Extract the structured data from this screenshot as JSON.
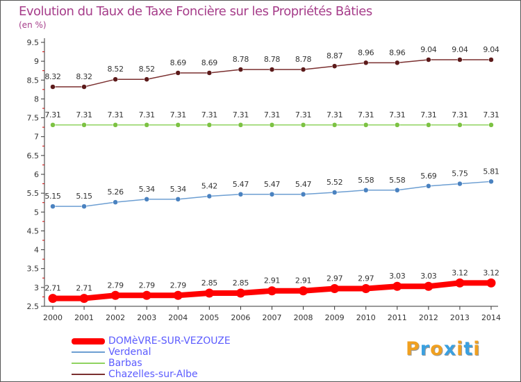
{
  "title": "Evolution du Taux de Taxe Foncière sur les Propriétés Bâties",
  "subtitle": "(en %)",
  "chart_data": {
    "type": "line",
    "title": "Evolution du Taux de Taxe Foncière sur les Propriétés Bâties",
    "ylabel": "(en %)",
    "xlabel": "",
    "ylim": [
      2.5,
      9.5
    ],
    "yticks": [
      "2.5",
      "3",
      "3.5",
      "4",
      "4.5",
      "5",
      "5.5",
      "6",
      "6.5",
      "7",
      "7.5",
      "8",
      "8.5",
      "9",
      "9.5"
    ],
    "categories": [
      "2000",
      "2001",
      "2002",
      "2003",
      "2004",
      "2005",
      "2006",
      "2007",
      "2008",
      "2009",
      "2010",
      "2011",
      "2012",
      "2013",
      "2014"
    ],
    "grid": false,
    "legend_position": "bottom-left",
    "series": [
      {
        "name": "DOMèVRE-SUR-VEZOUZE",
        "color": "#ff0000",
        "marker_color": "#ff0000",
        "highlight": true,
        "values": [
          2.71,
          2.71,
          2.79,
          2.79,
          2.79,
          2.85,
          2.85,
          2.91,
          2.91,
          2.97,
          2.97,
          3.03,
          3.03,
          3.12,
          3.12
        ],
        "labels": [
          "2.71",
          "2.71",
          "2.79",
          "2.79",
          "2.79",
          "2.85",
          "2.85",
          "2.91",
          "2.91",
          "2.97",
          "2.97",
          "3.03",
          "3.03",
          "3.12",
          "3.12"
        ]
      },
      {
        "name": "Verdenal",
        "color": "#6c9ed2",
        "marker_color": "#4a82c0",
        "highlight": false,
        "values": [
          5.15,
          5.15,
          5.26,
          5.34,
          5.34,
          5.42,
          5.47,
          5.47,
          5.47,
          5.52,
          5.58,
          5.58,
          5.69,
          5.75,
          5.81
        ],
        "labels": [
          "5.15",
          "5.15",
          "5.26",
          "5.34",
          "5.34",
          "5.42",
          "5.47",
          "5.47",
          "5.47",
          "5.52",
          "5.58",
          "5.58",
          "5.69",
          "5.75",
          "5.81"
        ]
      },
      {
        "name": "Barbas",
        "color": "#8fd35f",
        "marker_color": "#7cc242",
        "highlight": false,
        "values": [
          7.31,
          7.31,
          7.31,
          7.31,
          7.31,
          7.31,
          7.31,
          7.31,
          7.31,
          7.31,
          7.31,
          7.31,
          7.31,
          7.31,
          7.31
        ],
        "labels": [
          "7.31",
          "7.31",
          "7.31",
          "7.31",
          "7.31",
          "7.31",
          "7.31",
          "7.31",
          "7.31",
          "7.31",
          "7.31",
          "7.31",
          "7.31",
          "7.31",
          "7.31"
        ]
      },
      {
        "name": "Chazelles-sur-Albe",
        "color": "#7a2f2f",
        "marker_color": "#5c1a1a",
        "highlight": false,
        "values": [
          8.32,
          8.32,
          8.52,
          8.52,
          8.69,
          8.69,
          8.78,
          8.78,
          8.78,
          8.87,
          8.96,
          8.96,
          9.04,
          9.04,
          9.04
        ],
        "labels": [
          "8.32",
          "8.32",
          "8.52",
          "8.52",
          "8.69",
          "8.69",
          "8.78",
          "8.78",
          "8.78",
          "8.87",
          "8.96",
          "8.96",
          "9.04",
          "9.04",
          "9.04"
        ]
      }
    ]
  },
  "legend_order": [
    0,
    1,
    2,
    3
  ],
  "logo": {
    "letters": [
      "P",
      "r",
      "o",
      "x",
      "i",
      "t",
      "i"
    ],
    "colors": [
      "#f0a020",
      "#3aa0e0",
      "#f0a020",
      "#3aa0e0",
      "#f0a020",
      "#3aa0e0",
      "#f0a020"
    ]
  },
  "colors": {
    "title": "#a63d8a",
    "axis": "#333333",
    "tick_text": "#333333",
    "legend_text": "#5b5bff"
  }
}
